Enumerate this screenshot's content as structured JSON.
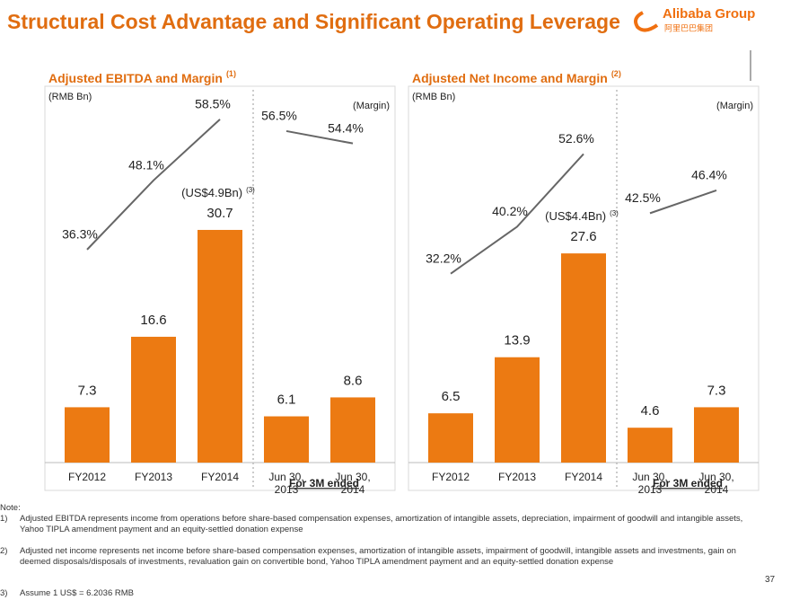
{
  "title": "Structural Cost Advantage and Significant Operating Leverage",
  "logo": {
    "name": "Alibaba Group",
    "chinese": "阿里巴巴集团"
  },
  "chart_data": [
    {
      "type": "bar",
      "title": "Adjusted EBITDA and Margin",
      "title_note": "(1)",
      "y_label": "(RMB Bn)",
      "y2_label": "(Margin)",
      "categories": [
        "FY2012",
        "FY2013",
        "FY2014",
        "Jun 30, 2013",
        "Jun 30, 2014"
      ],
      "values": [
        7.3,
        16.6,
        30.7,
        6.1,
        8.6
      ],
      "color": "#ec7a12",
      "ylim": [
        0,
        48
      ],
      "y2lim": [
        0,
        62
      ],
      "lines": [
        {
          "axis": "y2",
          "color": "#666666",
          "values": [
            36.3,
            48.1,
            58.5,
            null,
            null
          ],
          "value_labels": [
            "36.3%",
            "48.1%",
            "58.5%",
            null,
            null
          ]
        },
        {
          "axis": "y2",
          "color": "#666666",
          "values": [
            null,
            null,
            null,
            56.5,
            54.4
          ],
          "value_labels": [
            null,
            null,
            null,
            "56.5%",
            "54.4%"
          ]
        }
      ],
      "annotation": {
        "text": "(US$4.9Bn)",
        "note": "(3)"
      },
      "group_label": "For 3M ended"
    },
    {
      "type": "bar",
      "title": "Adjusted Net Income and Margin",
      "title_note": "(2)",
      "y_label": "(RMB Bn)",
      "y2_label": "(Margin)",
      "categories": [
        "FY2012",
        "FY2013",
        "FY2014",
        "Jun 30, 2013",
        "Jun 30, 2014"
      ],
      "values": [
        6.5,
        13.9,
        27.6,
        4.6,
        7.3
      ],
      "color": "#ec7a12",
      "ylim": [
        0,
        48
      ],
      "y2lim": [
        0,
        62
      ],
      "lines": [
        {
          "axis": "y2",
          "color": "#666666",
          "values": [
            32.2,
            40.2,
            52.6,
            null,
            null
          ],
          "value_labels": [
            "32.2%",
            "40.2%",
            "52.6%",
            null,
            null
          ]
        },
        {
          "axis": "y2",
          "color": "#666666",
          "values": [
            null,
            null,
            null,
            42.5,
            46.4
          ],
          "value_labels": [
            null,
            null,
            null,
            "42.5%",
            "46.4%"
          ]
        }
      ],
      "annotation": {
        "text": "(US$4.4Bn)",
        "note": "(3)"
      },
      "group_label": "For 3M ended"
    }
  ],
  "footnotes": {
    "heading": "Note:",
    "items": [
      {
        "marker": "1)",
        "text": "Adjusted EBITDA represents income from operations before share-based compensation expenses, amortization of intangible assets, depreciation, impairment of goodwill and intangible assets, Yahoo TIPLA amendment payment and an equity-settled donation expense"
      },
      {
        "marker": "2)",
        "text": "Adjusted net income represents net income before share-based compensation expenses, amortization of intangible assets, impairment of goodwill, intangible assets and investments, gain on deemed disposals/disposals of investments, revaluation gain on convertible bond, Yahoo TIPLA amendment payment and an equity-settled donation expense"
      },
      {
        "marker": "3)",
        "text": "Assume 1 US$ = 6.2036 RMB"
      }
    ]
  },
  "page_number": "37"
}
